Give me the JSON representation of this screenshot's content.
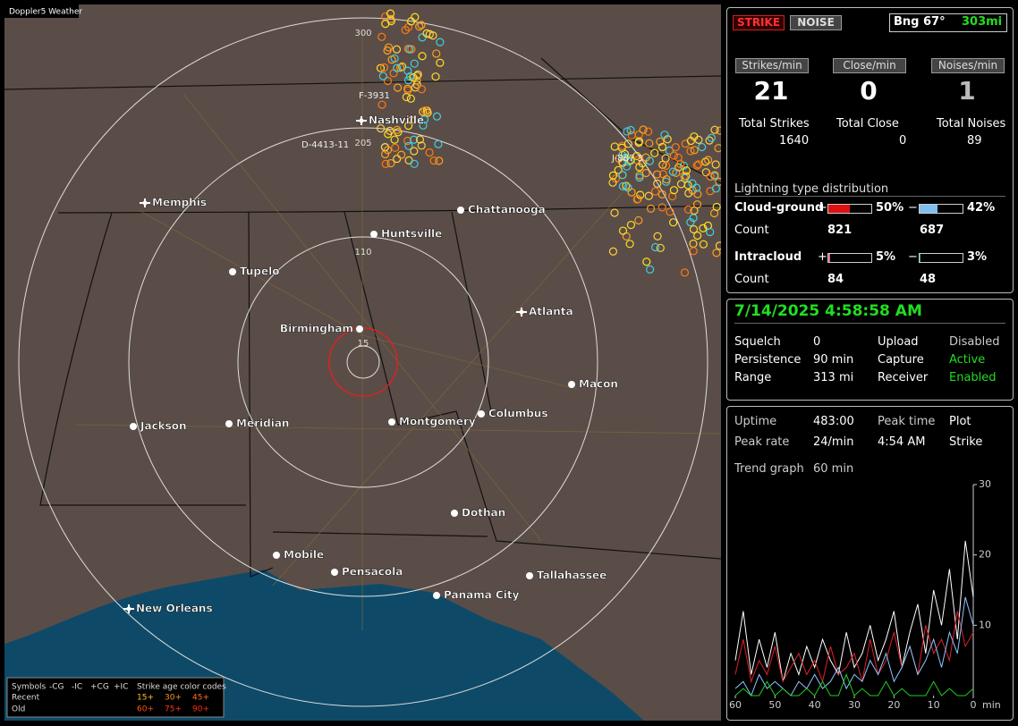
{
  "map": {
    "title": "Doppler5 Weather",
    "rings": [
      "300",
      "205",
      "110",
      "15"
    ],
    "cities": [
      "Nashville",
      "Memphis",
      "Chattanooga",
      "Huntsville",
      "Tupelo",
      "Birmingham",
      "Atlanta",
      "Macon",
      "Jackson",
      "Meridian",
      "Montgomery",
      "Columbus",
      "Dothan",
      "Mobile",
      "Pensacola",
      "Panama City",
      "Tallahassee",
      "New Orleans"
    ],
    "stations": [
      "F-3931",
      "D-4413-11",
      "J-887 3"
    ],
    "legend": {
      "header": [
        "Symbols",
        "-CG",
        "-IC",
        "+CG",
        "+IC",
        "Strike age color codes"
      ],
      "rows": [
        "Recent",
        "Old"
      ],
      "ages": [
        "15+",
        "30+",
        "45+",
        "60+",
        "75+",
        "90+"
      ]
    }
  },
  "panel": {
    "mode": [
      "STRIKE",
      "NOISE"
    ],
    "bearing": "Bng 67°",
    "distance": "303mi",
    "rates": [
      {
        "label": "Strikes/min",
        "value": 21
      },
      {
        "label": "Close/min",
        "value": 0
      },
      {
        "label": "Noises/min",
        "value": 1
      }
    ],
    "totals": [
      {
        "label": "Total Strikes",
        "value": 1640
      },
      {
        "label": "Total Close",
        "value": 0
      },
      {
        "label": "Total Noises",
        "value": 89
      }
    ],
    "distribution": {
      "title": "Lightning type distribution",
      "count_label": "Count",
      "rows": [
        {
          "label": "Cloud-ground",
          "plus": "+",
          "minus": "−",
          "pos_pct": {
            "value": 50,
            "label": "50%"
          },
          "neg_pct": {
            "value": 42,
            "label": "42%"
          },
          "pos_count": 821,
          "neg_count": 687
        },
        {
          "label": "Intracloud",
          "plus": "+",
          "minus": "−",
          "pos_pct": {
            "value": 5,
            "label": "5%"
          },
          "neg_pct": {
            "value": 3,
            "label": "3%"
          },
          "pos_count": 84,
          "neg_count": 48
        }
      ]
    },
    "datetime": "7/14/2025 4:58:58 AM",
    "status": [
      [
        "Squelch",
        "0",
        "Upload",
        "Disabled"
      ],
      [
        "Persistence",
        "90 min",
        "Capture",
        "Active"
      ],
      [
        "Range",
        "313 mi",
        "Receiver",
        "Enabled"
      ]
    ],
    "stats": [
      [
        "Uptime",
        "483:00",
        "Peak time",
        "Plot"
      ],
      [
        "Peak rate",
        "24/min",
        "4:54 AM",
        "Strike"
      ]
    ],
    "trend": [
      "Trend graph",
      "60 min"
    ]
  },
  "chart_data": {
    "type": "line",
    "x_unit": "min",
    "x": [
      60,
      58,
      56,
      54,
      52,
      50,
      48,
      46,
      44,
      42,
      40,
      38,
      36,
      34,
      32,
      30,
      28,
      26,
      24,
      22,
      20,
      18,
      16,
      14,
      12,
      10,
      8,
      6,
      4,
      2,
      0
    ],
    "xlim": [
      60,
      0
    ],
    "xticks": [
      60,
      50,
      40,
      30,
      20,
      10,
      0
    ],
    "ylim": [
      0,
      30
    ],
    "yticks": [
      10,
      20,
      30
    ],
    "series": [
      {
        "color": "#ffffff",
        "values": [
          5,
          12,
          3,
          8,
          4,
          9,
          2,
          6,
          3,
          7,
          4,
          8,
          5,
          3,
          9,
          4,
          6,
          10,
          5,
          8,
          12,
          4,
          9,
          13,
          6,
          15,
          10,
          18,
          8,
          22,
          14
        ]
      },
      {
        "color": "#e0202a",
        "values": [
          3,
          8,
          2,
          5,
          3,
          7,
          2,
          4,
          6,
          3,
          5,
          2,
          7,
          3,
          4,
          6,
          2,
          8,
          3,
          5,
          9,
          4,
          7,
          3,
          10,
          6,
          8,
          5,
          12,
          7,
          9
        ]
      },
      {
        "color": "#8cc8ff",
        "values": [
          1,
          2,
          0,
          3,
          1,
          2,
          1,
          0,
          2,
          1,
          3,
          1,
          2,
          4,
          1,
          3,
          2,
          5,
          3,
          6,
          2,
          4,
          7,
          3,
          5,
          8,
          4,
          9,
          6,
          14,
          10
        ]
      },
      {
        "color": "#22cc22",
        "values": [
          0,
          1,
          0,
          0,
          2,
          0,
          1,
          0,
          0,
          1,
          0,
          2,
          0,
          0,
          3,
          0,
          1,
          0,
          0,
          2,
          0,
          1,
          0,
          0,
          0,
          2,
          0,
          1,
          0,
          0,
          1
        ]
      }
    ]
  }
}
